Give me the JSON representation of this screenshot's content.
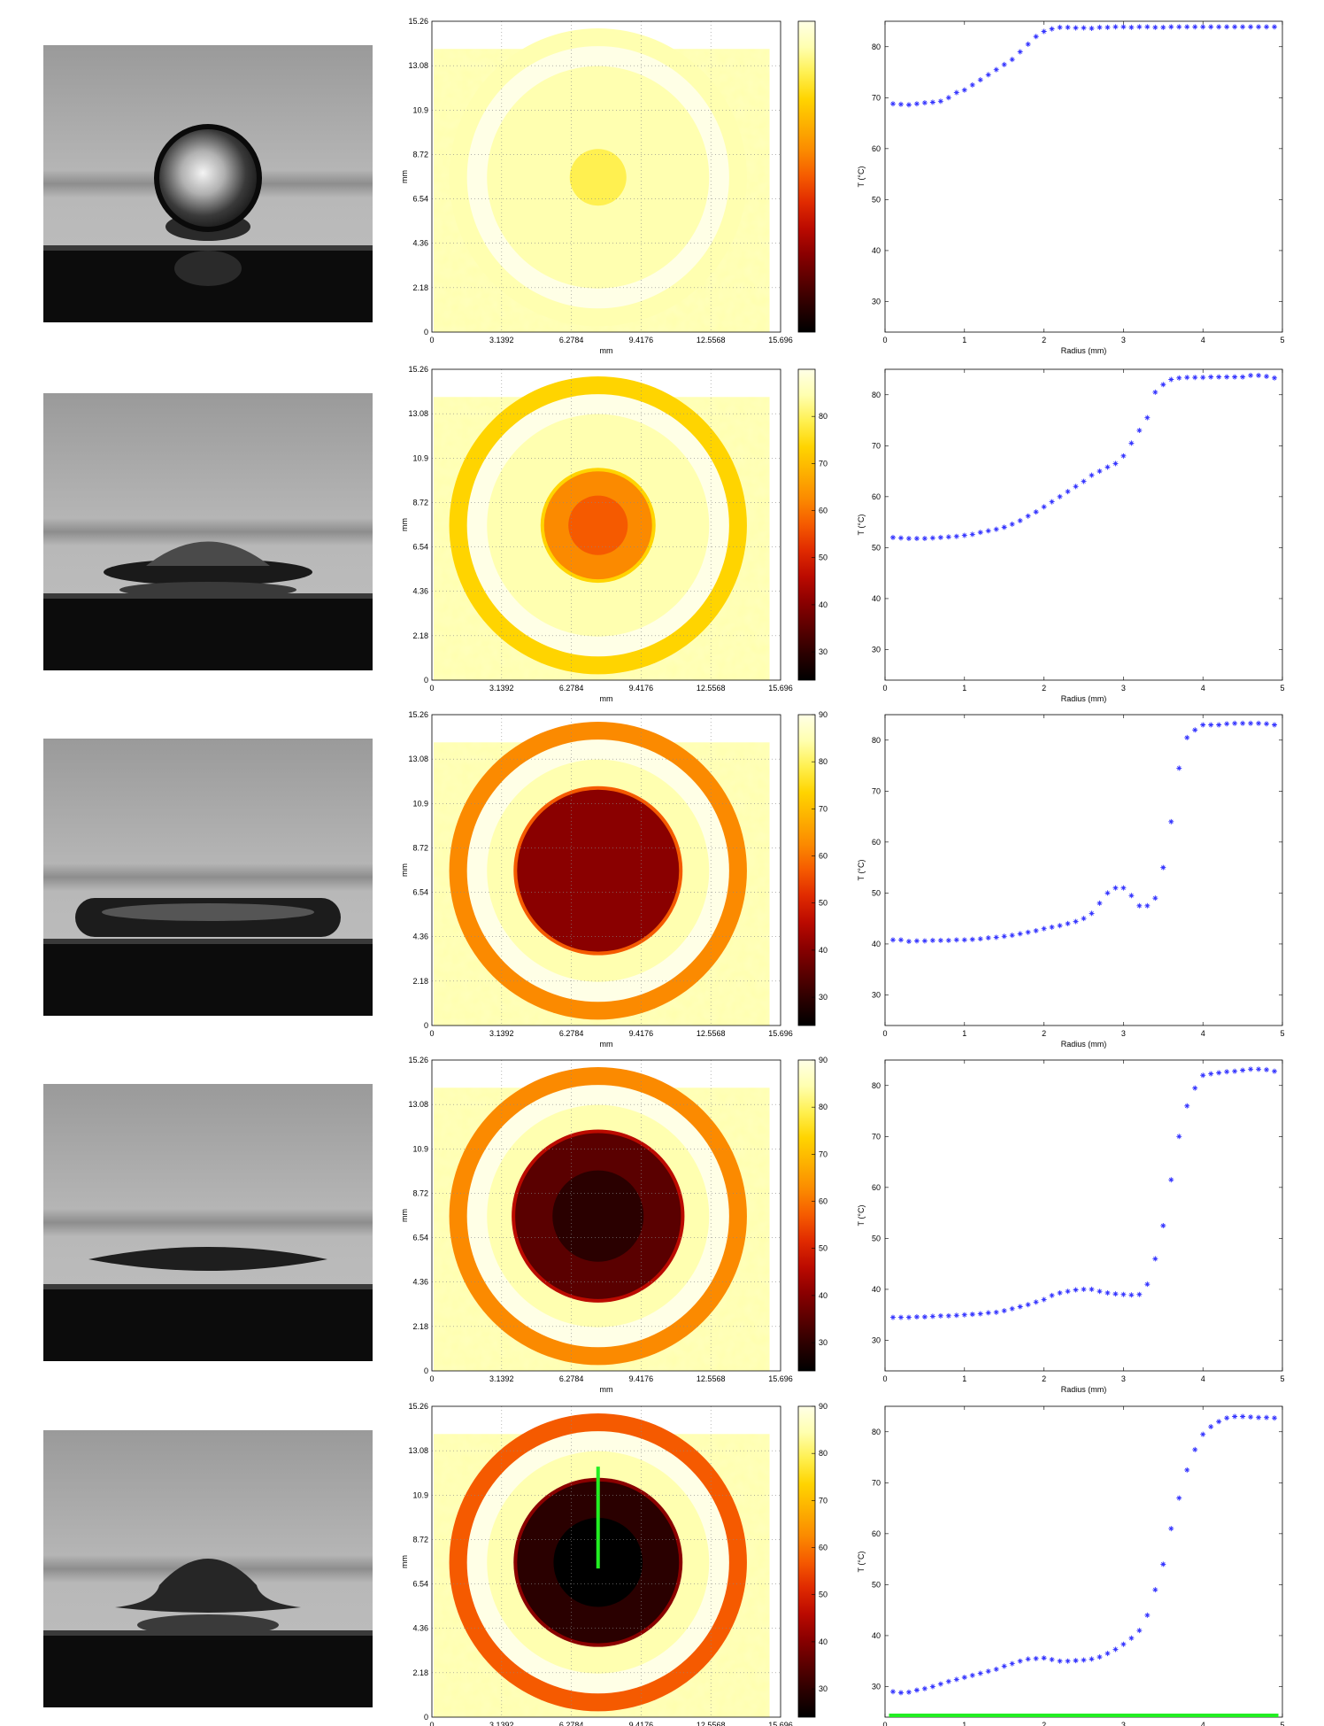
{
  "figure": {
    "colors": {
      "marker": "#3333ff",
      "highlight": "#22ee22",
      "frame": "#000000",
      "grid": "#888888"
    },
    "colormap": [
      "#000000",
      "#2a0000",
      "#5a0000",
      "#8a0000",
      "#bb0a00",
      "#e02a00",
      "#f55a00",
      "#fb8a00",
      "#fdb000",
      "#ffd400",
      "#fff050",
      "#ffffb0",
      "#ffffe6"
    ],
    "heatmap_axes": {
      "xlabel": "mm",
      "ylabel": "mm",
      "xticks": [
        "0",
        "3.1392",
        "6.2784",
        "9.4176",
        "12.5568",
        "15.696"
      ],
      "yticks": [
        "0",
        "2.18",
        "4.36",
        "6.54",
        "8.72",
        "10.9",
        "13.08",
        "15.26"
      ]
    },
    "colorbar_ticks_first": [],
    "colorbar_ticks_second": [
      "30",
      "40",
      "50",
      "60",
      "70",
      "80"
    ],
    "colorbar_ticks_rest": [
      "30",
      "40",
      "50",
      "60",
      "70",
      "80",
      "90"
    ],
    "profile_axes": {
      "xlabel": "Radius (mm)",
      "ylabel": "T (°C)",
      "xticks": [
        "0",
        "1",
        "2",
        "3",
        "4",
        "5"
      ],
      "yticks": [
        "30",
        "40",
        "50",
        "60",
        "70",
        "80"
      ]
    },
    "rows": [
      {
        "droplet": "sphere",
        "center_T": 77,
        "inner_T": 77,
        "inner_radius_frac": 0.0,
        "ring_T": 86
      },
      {
        "droplet": "spreading",
        "center_T": 55,
        "inner_T": 60,
        "inner_radius_frac": 0.28,
        "ring_T": 74
      },
      {
        "droplet": "pancake",
        "center_T": 41,
        "inner_T": 41,
        "inner_radius_frac": 0.42,
        "ring_T": 62
      },
      {
        "droplet": "lens",
        "center_T": 28,
        "inner_T": 34,
        "inner_radius_frac": 0.43,
        "ring_T": 60
      },
      {
        "droplet": "recoil",
        "center_T": 22,
        "inner_T": 28,
        "inner_radius_frac": 0.42,
        "ring_T": 58,
        "marker_line": true
      }
    ]
  },
  "chart_data": [
    {
      "type": "scatter",
      "xlabel": "Radius (mm)",
      "ylabel": "T (°C)",
      "xlim": [
        0,
        5
      ],
      "ylim": [
        24,
        85
      ],
      "x": [
        0.1,
        0.2,
        0.3,
        0.4,
        0.5,
        0.6,
        0.7,
        0.8,
        0.9,
        1.0,
        1.1,
        1.2,
        1.3,
        1.4,
        1.5,
        1.6,
        1.7,
        1.8,
        1.9,
        2.0,
        2.1,
        2.2,
        2.3,
        2.4,
        2.5,
        2.6,
        2.7,
        2.8,
        2.9,
        3.0,
        3.1,
        3.2,
        3.3,
        3.4,
        3.5,
        3.6,
        3.7,
        3.8,
        3.9,
        4.0,
        4.1,
        4.2,
        4.3,
        4.4,
        4.5,
        4.6,
        4.7,
        4.8,
        4.9
      ],
      "y": [
        68.8,
        68.7,
        68.6,
        68.8,
        69.0,
        69.1,
        69.3,
        70.0,
        71.0,
        71.5,
        72.5,
        73.5,
        74.5,
        75.5,
        76.5,
        77.5,
        79.0,
        80.5,
        82.0,
        83.0,
        83.5,
        83.8,
        83.8,
        83.7,
        83.7,
        83.6,
        83.8,
        83.8,
        83.9,
        83.9,
        83.8,
        83.9,
        83.9,
        83.8,
        83.8,
        83.9,
        83.9,
        83.9,
        83.9,
        83.9,
        83.9,
        83.9,
        83.9,
        83.9,
        83.9,
        83.9,
        83.9,
        83.9,
        83.9
      ]
    },
    {
      "type": "scatter",
      "xlabel": "Radius (mm)",
      "ylabel": "T (°C)",
      "xlim": [
        0,
        5
      ],
      "ylim": [
        24,
        85
      ],
      "x": [
        0.1,
        0.2,
        0.3,
        0.4,
        0.5,
        0.6,
        0.7,
        0.8,
        0.9,
        1.0,
        1.1,
        1.2,
        1.3,
        1.4,
        1.5,
        1.6,
        1.7,
        1.8,
        1.9,
        2.0,
        2.1,
        2.2,
        2.3,
        2.4,
        2.5,
        2.6,
        2.7,
        2.8,
        2.9,
        3.0,
        3.1,
        3.2,
        3.3,
        3.4,
        3.5,
        3.6,
        3.7,
        3.8,
        3.9,
        4.0,
        4.1,
        4.2,
        4.3,
        4.4,
        4.5,
        4.6,
        4.7,
        4.8,
        4.9
      ],
      "y": [
        52.0,
        51.9,
        51.8,
        51.8,
        51.8,
        51.9,
        52.0,
        52.1,
        52.2,
        52.4,
        52.6,
        53.0,
        53.3,
        53.6,
        54.0,
        54.6,
        55.3,
        56.2,
        57.0,
        58.0,
        59.0,
        60.0,
        61.0,
        62.0,
        63.0,
        64.2,
        65.0,
        65.8,
        66.5,
        68.0,
        70.5,
        73.0,
        75.5,
        80.5,
        82.0,
        83.0,
        83.3,
        83.4,
        83.4,
        83.4,
        83.5,
        83.5,
        83.5,
        83.5,
        83.5,
        83.8,
        83.8,
        83.6,
        83.3
      ]
    },
    {
      "type": "scatter",
      "xlabel": "Radius (mm)",
      "ylabel": "T (°C)",
      "xlim": [
        0,
        5
      ],
      "ylim": [
        24,
        85
      ],
      "x": [
        0.1,
        0.2,
        0.3,
        0.4,
        0.5,
        0.6,
        0.7,
        0.8,
        0.9,
        1.0,
        1.1,
        1.2,
        1.3,
        1.4,
        1.5,
        1.6,
        1.7,
        1.8,
        1.9,
        2.0,
        2.1,
        2.2,
        2.3,
        2.4,
        2.5,
        2.6,
        2.7,
        2.8,
        2.9,
        3.0,
        3.1,
        3.2,
        3.3,
        3.4,
        3.5,
        3.6,
        3.7,
        3.8,
        3.9,
        4.0,
        4.1,
        4.2,
        4.3,
        4.4,
        4.5,
        4.6,
        4.7,
        4.8,
        4.9
      ],
      "y": [
        40.8,
        40.8,
        40.5,
        40.6,
        40.6,
        40.7,
        40.7,
        40.7,
        40.8,
        40.8,
        40.9,
        41.0,
        41.2,
        41.3,
        41.5,
        41.7,
        42.0,
        42.3,
        42.6,
        43.0,
        43.3,
        43.6,
        44.0,
        44.4,
        45.0,
        46.0,
        48.0,
        50.0,
        51.0,
        51.0,
        49.5,
        47.5,
        47.5,
        49.0,
        55.0,
        64.0,
        74.5,
        80.5,
        82.0,
        83.0,
        83.0,
        83.0,
        83.2,
        83.3,
        83.3,
        83.3,
        83.3,
        83.2,
        83.0
      ]
    },
    {
      "type": "scatter",
      "xlabel": "Radius (mm)",
      "ylabel": "T (°C)",
      "xlim": [
        0,
        5
      ],
      "ylim": [
        24,
        85
      ],
      "x": [
        0.1,
        0.2,
        0.3,
        0.4,
        0.5,
        0.6,
        0.7,
        0.8,
        0.9,
        1.0,
        1.1,
        1.2,
        1.3,
        1.4,
        1.5,
        1.6,
        1.7,
        1.8,
        1.9,
        2.0,
        2.1,
        2.2,
        2.3,
        2.4,
        2.5,
        2.6,
        2.7,
        2.8,
        2.9,
        3.0,
        3.1,
        3.2,
        3.3,
        3.4,
        3.5,
        3.6,
        3.7,
        3.8,
        3.9,
        4.0,
        4.1,
        4.2,
        4.3,
        4.4,
        4.5,
        4.6,
        4.7,
        4.8,
        4.9
      ],
      "y": [
        34.5,
        34.5,
        34.5,
        34.6,
        34.6,
        34.7,
        34.8,
        34.8,
        34.9,
        35.0,
        35.1,
        35.2,
        35.4,
        35.5,
        35.8,
        36.2,
        36.6,
        37.0,
        37.5,
        38.0,
        38.8,
        39.3,
        39.6,
        39.9,
        40.0,
        40.0,
        39.6,
        39.3,
        39.1,
        39.0,
        38.9,
        39.0,
        41.0,
        46.0,
        52.5,
        61.5,
        70.0,
        76.0,
        79.5,
        82.0,
        82.3,
        82.5,
        82.7,
        82.8,
        83.0,
        83.2,
        83.2,
        83.1,
        82.8
      ]
    },
    {
      "type": "scatter",
      "xlabel": "Radius (mm)",
      "ylabel": "T (°C)",
      "xlim": [
        0,
        5
      ],
      "ylim": [
        24,
        85
      ],
      "x": [
        0.1,
        0.2,
        0.3,
        0.4,
        0.5,
        0.6,
        0.7,
        0.8,
        0.9,
        1.0,
        1.1,
        1.2,
        1.3,
        1.4,
        1.5,
        1.6,
        1.7,
        1.8,
        1.9,
        2.0,
        2.1,
        2.2,
        2.3,
        2.4,
        2.5,
        2.6,
        2.7,
        2.8,
        2.9,
        3.0,
        3.1,
        3.2,
        3.3,
        3.4,
        3.5,
        3.6,
        3.7,
        3.8,
        3.9,
        4.0,
        4.1,
        4.2,
        4.3,
        4.4,
        4.5,
        4.6,
        4.7,
        4.8,
        4.9
      ],
      "y": [
        29.0,
        28.8,
        28.9,
        29.3,
        29.6,
        30.0,
        30.5,
        31.0,
        31.4,
        31.8,
        32.2,
        32.6,
        33.0,
        33.4,
        34.0,
        34.5,
        35.0,
        35.4,
        35.5,
        35.6,
        35.3,
        35.0,
        35.0,
        35.1,
        35.2,
        35.4,
        35.8,
        36.5,
        37.3,
        38.3,
        39.5,
        41.0,
        44.0,
        49.0,
        54.0,
        61.0,
        67.0,
        72.5,
        76.5,
        79.5,
        81.0,
        82.0,
        82.7,
        83.0,
        83.0,
        82.9,
        82.8,
        82.8,
        82.7
      ],
      "baseline_T": 24
    }
  ]
}
